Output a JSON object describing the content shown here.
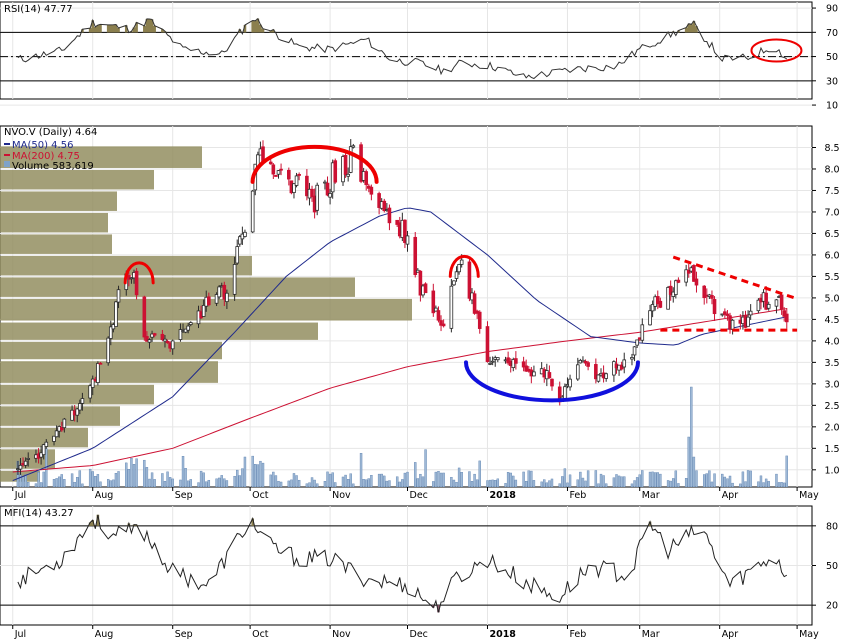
{
  "chart_data": [
    {
      "type": "line",
      "panel": "rsi",
      "title": "RSI(14) 47.77",
      "ylim": [
        15,
        95
      ],
      "yticks": [
        "90",
        "70",
        "50",
        "30",
        "10"
      ],
      "overbought": 70,
      "oversold": 30,
      "midline": 50,
      "series": [
        {
          "name": "RSI(14)",
          "x": [
            "2017-07-05",
            "2017-07-20",
            "2017-08-01",
            "2017-08-15",
            "2017-08-23",
            "2017-09-05",
            "2017-09-20",
            "2017-10-02",
            "2017-10-10",
            "2017-10-20",
            "2017-11-01",
            "2017-11-15",
            "2017-11-25",
            "2017-12-05",
            "2017-12-15",
            "2017-12-22",
            "2018-01-03",
            "2018-01-15",
            "2018-01-25",
            "2018-02-05",
            "2018-02-20",
            "2018-03-01",
            "2018-03-15",
            "2018-03-22",
            "2018-04-02",
            "2018-04-12",
            "2018-04-22",
            "2018-04-27"
          ],
          "values": [
            48,
            55,
            78,
            73,
            80,
            56,
            52,
            82,
            70,
            58,
            56,
            64,
            47,
            45,
            38,
            45,
            42,
            33,
            36,
            40,
            42,
            56,
            70,
            76,
            48,
            49,
            59,
            48
          ]
        }
      ],
      "color": "#333333",
      "fill_color": "#8b7f4e"
    },
    {
      "type": "candlestick",
      "panel": "price",
      "title": "NVO.V (Daily) 4.64",
      "legend": [
        {
          "label": "MA(50) 4.56",
          "color": "#1f2a8c"
        },
        {
          "label": "MA(200) 4.75",
          "color": "#cc1133"
        },
        {
          "label": "Volume 583,619",
          "color": "#7fa3c8"
        }
      ],
      "ylim": [
        0.6,
        9.0
      ],
      "yticks": [
        "8.5",
        "8.0",
        "7.5",
        "7.0",
        "6.5",
        "6.0",
        "5.5",
        "5.0",
        "4.5",
        "4.0",
        "3.5",
        "3.0",
        "2.5",
        "2.0",
        "1.5",
        "1.0"
      ],
      "x_ticks": [
        "Jul",
        "Aug",
        "Sep",
        "Oct",
        "Nov",
        "Dec",
        "2018",
        "Feb",
        "Mar",
        "Apr",
        "May"
      ],
      "price_path": {
        "x": [
          "2017-07-01",
          "2017-07-10",
          "2017-07-20",
          "2017-07-28",
          "2017-08-05",
          "2017-08-12",
          "2017-08-17",
          "2017-08-20",
          "2017-08-25",
          "2017-09-01",
          "2017-09-08",
          "2017-09-15",
          "2017-09-22",
          "2017-09-28",
          "2017-10-02",
          "2017-10-04",
          "2017-10-08",
          "2017-10-14",
          "2017-10-20",
          "2017-10-26",
          "2017-11-03",
          "2017-11-10",
          "2017-11-15",
          "2017-11-22",
          "2017-12-01",
          "2017-12-06",
          "2017-12-12",
          "2017-12-16",
          "2017-12-20",
          "2017-12-23",
          "2018-01-01",
          "2018-01-06",
          "2018-01-12",
          "2018-01-18",
          "2018-01-24",
          "2018-01-28",
          "2018-02-05",
          "2018-02-12",
          "2018-02-19",
          "2018-02-26",
          "2018-03-05",
          "2018-03-12",
          "2018-03-19",
          "2018-03-24",
          "2018-03-28",
          "2018-04-04",
          "2018-04-10",
          "2018-04-16",
          "2018-04-22",
          "2018-04-27"
        ],
        "values": [
          0.9,
          1.3,
          2.0,
          2.6,
          3.6,
          5.3,
          5.5,
          4.2,
          4.0,
          3.9,
          4.4,
          4.9,
          5.2,
          6.5,
          7.2,
          8.5,
          8.2,
          7.8,
          7.6,
          7.3,
          7.9,
          8.3,
          7.5,
          7.0,
          6.5,
          5.2,
          4.7,
          4.4,
          5.8,
          5.6,
          3.6,
          3.7,
          3.4,
          3.3,
          3.2,
          2.5,
          3.6,
          3.1,
          3.4,
          3.6,
          4.7,
          5.2,
          5.6,
          5.5,
          4.9,
          4.4,
          4.4,
          4.9,
          5.0,
          4.64
        ]
      },
      "ma50": {
        "x": [
          "2017-07-01",
          "2017-08-01",
          "2017-09-01",
          "2017-09-25",
          "2017-10-15",
          "2017-11-01",
          "2017-11-20",
          "2017-12-01",
          "2017-12-10",
          "2018-01-01",
          "2018-01-20",
          "2018-02-10",
          "2018-03-01",
          "2018-03-15",
          "2018-03-25",
          "2018-04-10",
          "2018-04-27"
        ],
        "values": [
          0.75,
          1.5,
          2.7,
          4.2,
          5.5,
          6.3,
          6.9,
          7.1,
          7.0,
          6.0,
          4.95,
          4.1,
          3.95,
          3.9,
          4.15,
          4.35,
          4.56
        ]
      },
      "ma200": {
        "x": [
          "2017-07-01",
          "2017-08-01",
          "2017-09-01",
          "2017-10-01",
          "2017-11-01",
          "2017-12-01",
          "2018-01-01",
          "2018-02-01",
          "2018-03-01",
          "2018-04-01",
          "2018-04-27"
        ],
        "values": [
          0.95,
          1.1,
          1.5,
          2.2,
          2.9,
          3.4,
          3.75,
          4.0,
          4.2,
          4.5,
          4.75
        ]
      },
      "volume_by_price_color": "#8f8a5a",
      "candle_up_color": "#2a2a2a",
      "candle_down_color": "#cc1133",
      "annotation_color": "#ee0000",
      "cup_color": "#1010dd"
    },
    {
      "type": "line",
      "panel": "mfi",
      "title": "MFI(14) 43.27",
      "ylim": [
        5,
        95
      ],
      "yticks": [
        "80",
        "50",
        "20"
      ],
      "overbought": 80,
      "oversold": 20,
      "series": [
        {
          "name": "MFI(14)",
          "x": [
            "2017-07-05",
            "2017-07-20",
            "2017-08-01",
            "2017-08-10",
            "2017-08-20",
            "2017-09-01",
            "2017-09-15",
            "2017-10-01",
            "2017-10-08",
            "2017-10-20",
            "2017-11-01",
            "2017-11-15",
            "2017-12-01",
            "2017-12-12",
            "2017-12-20",
            "2018-01-01",
            "2018-01-15",
            "2018-01-28",
            "2018-02-10",
            "2018-02-25",
            "2018-03-05",
            "2018-03-12",
            "2018-03-25",
            "2018-04-05",
            "2018-04-12",
            "2018-04-22",
            "2018-04-27"
          ],
          "values": [
            40,
            55,
            85,
            72,
            78,
            45,
            35,
            85,
            65,
            55,
            55,
            40,
            35,
            18,
            40,
            55,
            38,
            25,
            50,
            42,
            82,
            62,
            78,
            35,
            45,
            58,
            43
          ]
        }
      ],
      "color": "#222222",
      "fill_top": "#8b7f4e",
      "fill_bottom": "#8a5a6e"
    }
  ]
}
